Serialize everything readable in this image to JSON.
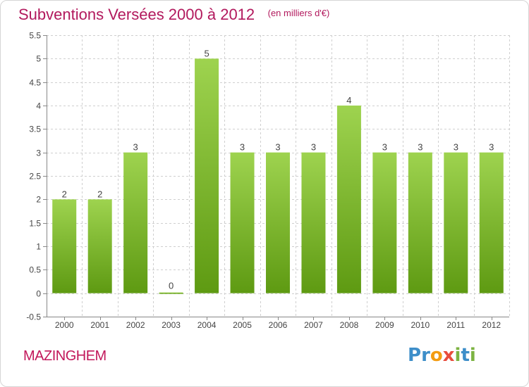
{
  "title": "Subventions Versées 2000 à 2012",
  "unit_note": "(en milliers d'€)",
  "location": "MAZINGHEM",
  "logo": {
    "text": "Proxiti",
    "letters": [
      {
        "ch": "P",
        "color": "#3d8ec9"
      },
      {
        "ch": "r",
        "color": "#3d8ec9"
      },
      {
        "ch": "o",
        "color": "#f39c12"
      },
      {
        "ch": "x",
        "color": "#e84c3d"
      },
      {
        "ch": "i",
        "color": "#7cb342"
      },
      {
        "ch": "t",
        "color": "#3d8ec9"
      },
      {
        "ch": "i",
        "color": "#7cb342"
      }
    ]
  },
  "colors": {
    "title": "#b2195d",
    "bar_top": "#9ed34f",
    "bar_bottom": "#5e9a12",
    "grid": "#cfcfcf",
    "axis": "#888888"
  },
  "chart_data": {
    "type": "bar",
    "categories": [
      "2000",
      "2001",
      "2002",
      "2003",
      "2004",
      "2005",
      "2006",
      "2007",
      "2008",
      "2009",
      "2010",
      "2011",
      "2012"
    ],
    "values": [
      2,
      2,
      3,
      0,
      5,
      3,
      3,
      3,
      4,
      3,
      3,
      3,
      3
    ],
    "data_labels": [
      "2",
      "2",
      "3",
      "0",
      "5",
      "3",
      "3",
      "3",
      "4",
      "3",
      "3",
      "3",
      "3"
    ],
    "ylim": [
      -0.5,
      5.5
    ],
    "yticks": [
      -0.5,
      0,
      0.5,
      1,
      1.5,
      2,
      2.5,
      3,
      3.5,
      4,
      4.5,
      5,
      5.5
    ],
    "ytick_labels": [
      "-0.5",
      "0",
      "0.5",
      "1",
      "1.5",
      "2",
      "2.5",
      "3",
      "3.5",
      "4",
      "4.5",
      "5",
      "5.5"
    ],
    "grid": true,
    "legend": "none"
  }
}
